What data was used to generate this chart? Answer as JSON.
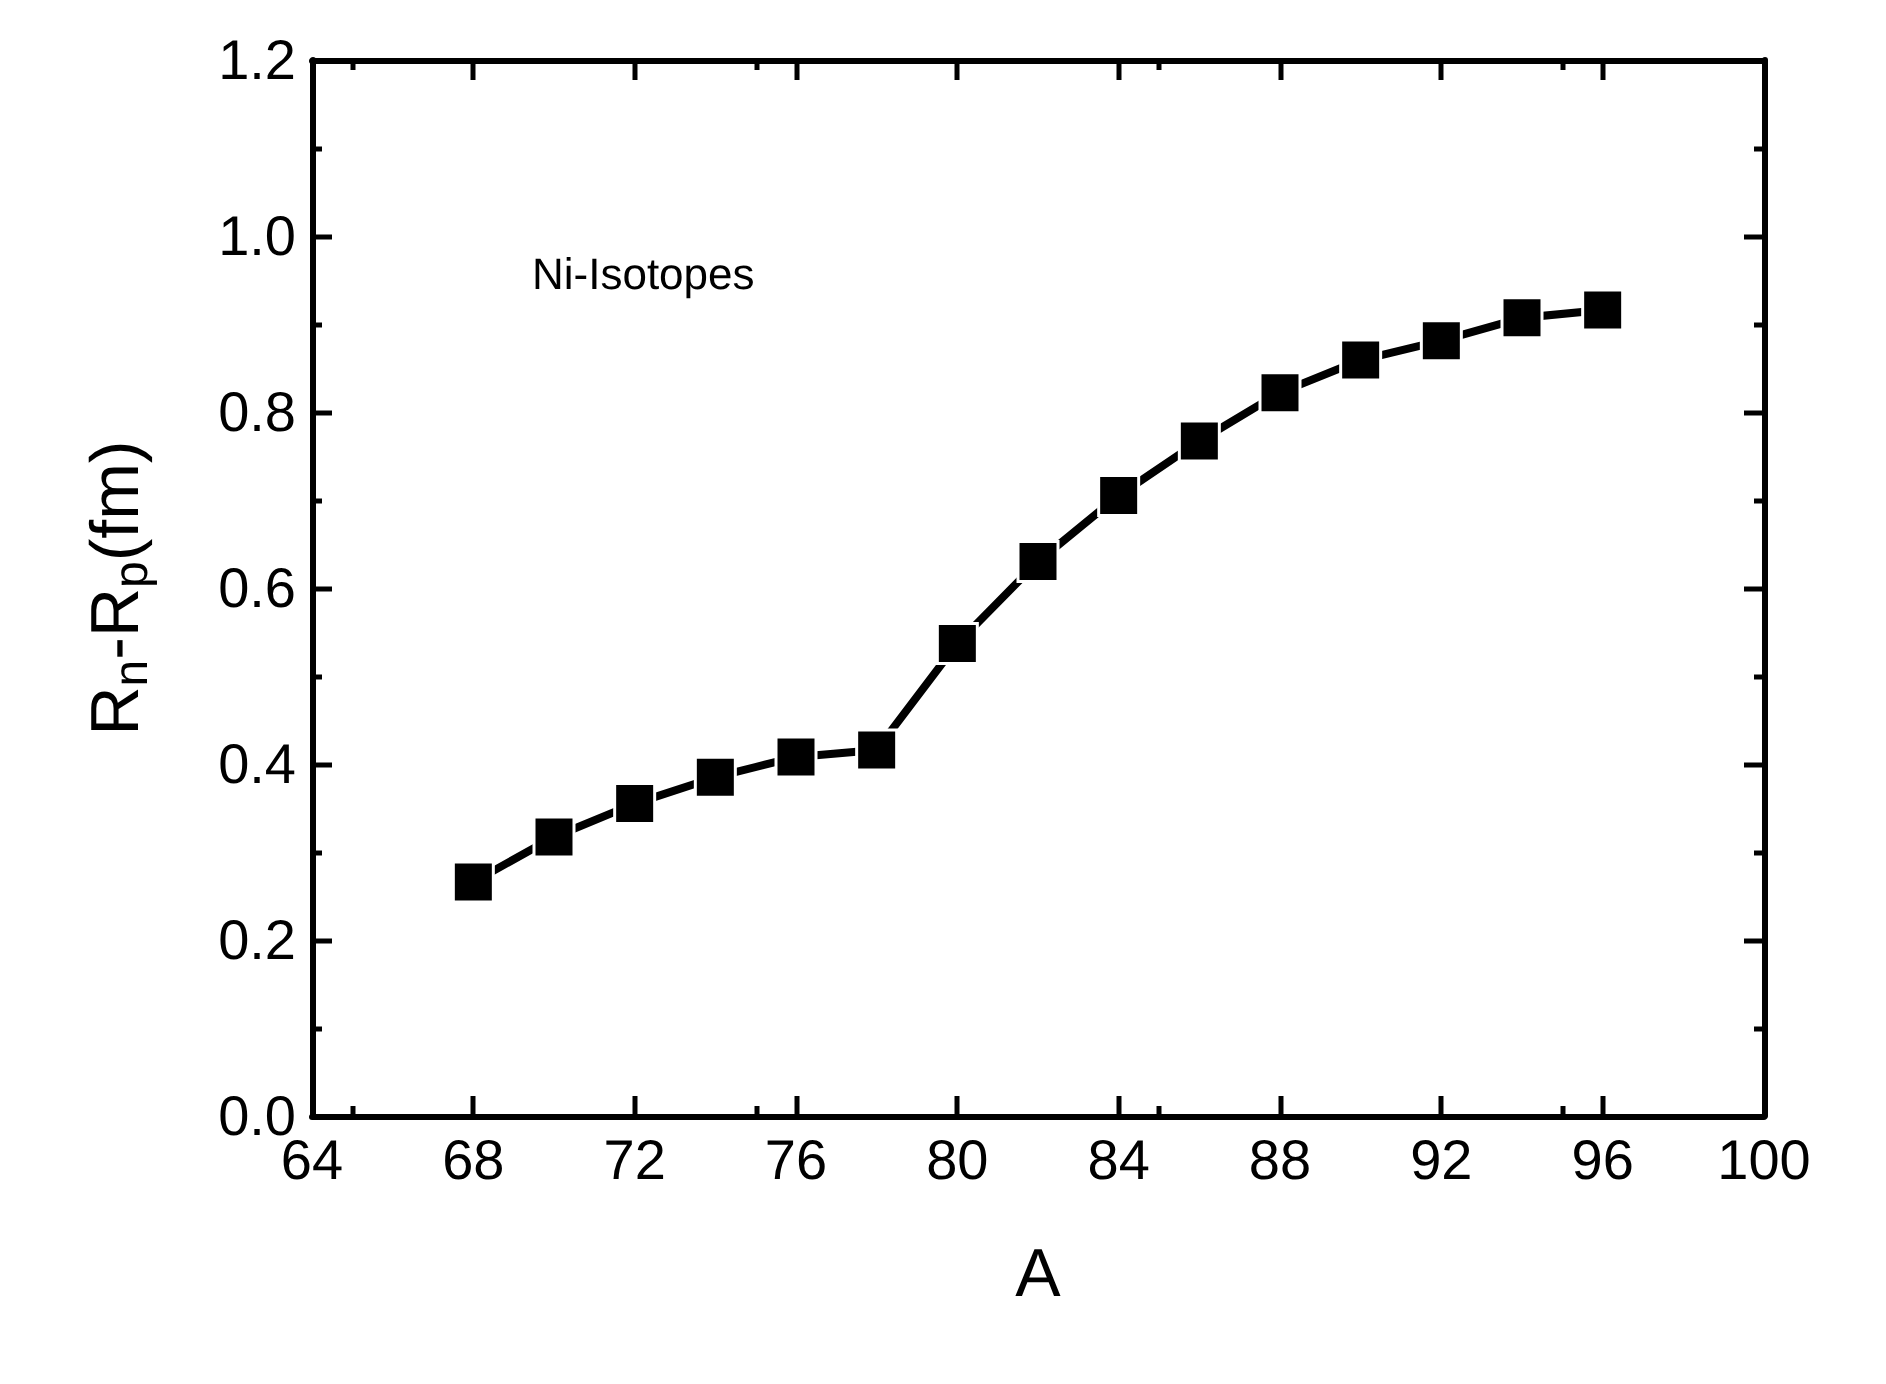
{
  "chart_data": {
    "type": "line",
    "xlabel": "A",
    "ylabel": "R$_{n}$-R$_{p}$(fm)",
    "annotations": [
      "Ni-Isotopes"
    ],
    "x": [
      68,
      70,
      72,
      74,
      76,
      78,
      80,
      82,
      84,
      86,
      88,
      90,
      92,
      94,
      96
    ],
    "series": [
      {
        "color": "#000000",
        "values": [
          0.266,
          0.317,
          0.355,
          0.385,
          0.408,
          0.416,
          0.537,
          0.63,
          0.705,
          0.767,
          0.822,
          0.859,
          0.881,
          0.907,
          0.916
        ]
      }
    ],
    "xlim": [
      64,
      100
    ],
    "xticks": [
      64,
      68,
      72,
      76,
      80,
      84,
      88,
      92,
      96,
      100
    ],
    "ylim": [
      0,
      1.2
    ],
    "yticks": [
      {
        "value": 0,
        "label": "0.0"
      },
      {
        "value": 0.2,
        "label": "0.2"
      },
      {
        "value": 0.4,
        "label": "0.4"
      },
      {
        "value": 0.6,
        "label": "0.6"
      },
      {
        "value": 0.8,
        "label": "0.8"
      },
      {
        "value": 1.0,
        "label": "1.0"
      },
      {
        "value": 1.2,
        "label": "1.2"
      }
    ],
    "marker": "square",
    "line_style": "solid"
  }
}
